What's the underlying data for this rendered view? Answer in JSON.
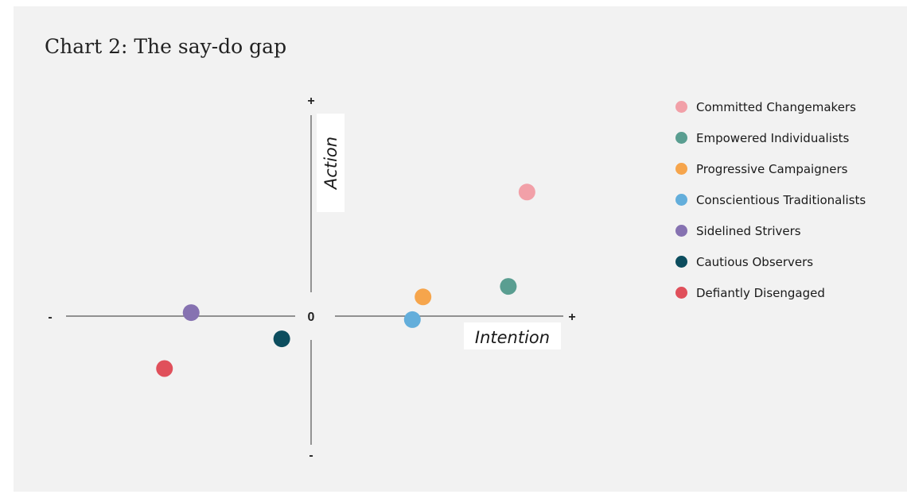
{
  "chart_data": {
    "type": "scatter",
    "title": "Chart 2: The say-do gap",
    "xlabel": "Intention",
    "ylabel": "Action",
    "x_axis_ticks": {
      "min": "-",
      "center": "0",
      "max": "+"
    },
    "y_axis_ticks": {
      "min": "-",
      "max": "+"
    },
    "xlim": [
      -1,
      1
    ],
    "ylim": [
      -1,
      1
    ],
    "grid": false,
    "legend_placement": "right",
    "series": [
      {
        "name": "Committed Changemakers",
        "color": "#f2a0a8",
        "x": 0.81,
        "y": 0.71
      },
      {
        "name": "Empowered Individualists",
        "color": "#5a9e91",
        "x": 0.74,
        "y": 0.17
      },
      {
        "name": "Progressive Campaigners",
        "color": "#f6a54c",
        "x": 0.42,
        "y": 0.11
      },
      {
        "name": "Conscientious Traditionalists",
        "color": "#63aedb",
        "x": 0.38,
        "y": -0.02
      },
      {
        "name": "Sidelined Strivers",
        "color": "#8672b1",
        "x": -0.45,
        "y": 0.02
      },
      {
        "name": "Cautious Observers",
        "color": "#0c4d5e",
        "x": -0.11,
        "y": -0.13
      },
      {
        "name": "Defiantly Disengaged",
        "color": "#e0505b",
        "x": -0.55,
        "y": -0.3
      }
    ]
  }
}
